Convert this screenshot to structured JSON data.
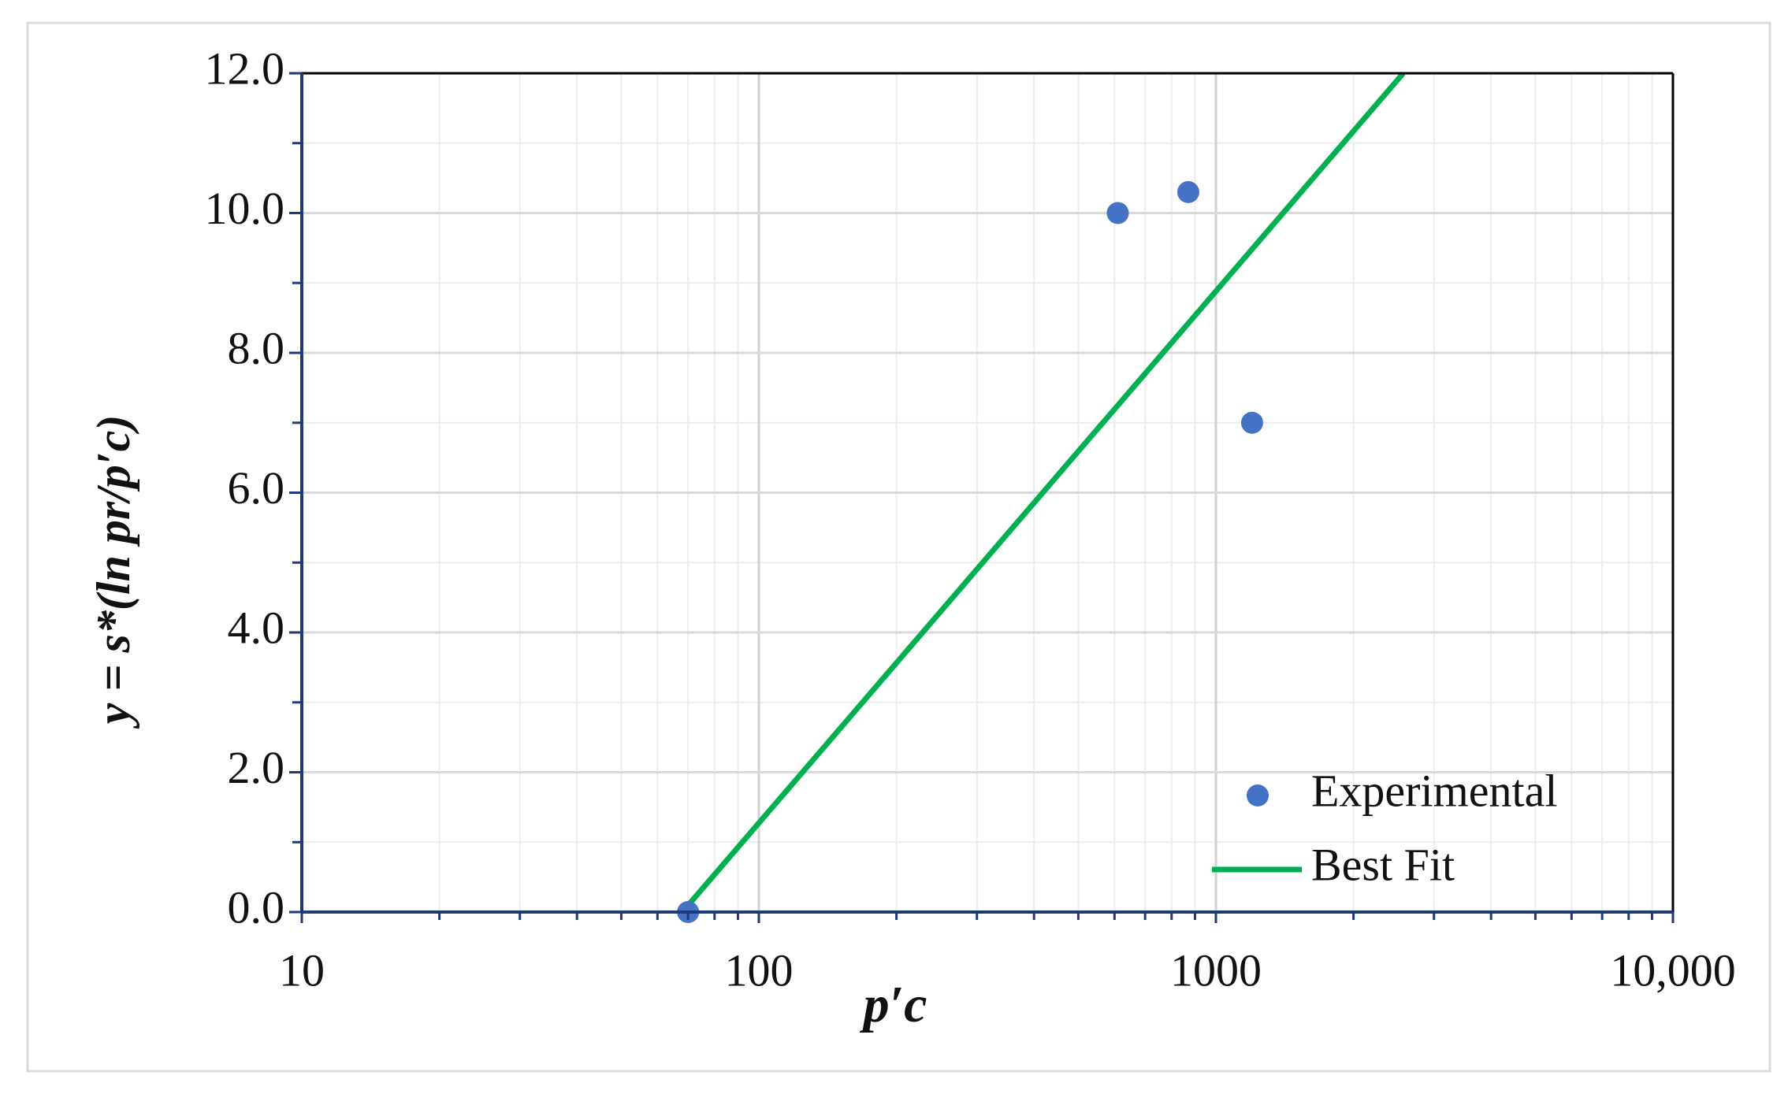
{
  "chart_data": {
    "type": "scatter",
    "x_label": "p′c",
    "y_label": "y = s*(ln pr/p′c)",
    "xscale": "log",
    "xlim": [
      10,
      10000
    ],
    "xticks": [
      10,
      100,
      1000,
      {
        "value": 10000,
        "label": "10,000"
      }
    ],
    "xminorticks": [
      20,
      30,
      40,
      50,
      60,
      70,
      80,
      90,
      200,
      300,
      400,
      500,
      600,
      700,
      800,
      900,
      2000,
      3000,
      4000,
      5000,
      6000,
      7000,
      8000,
      9000
    ],
    "ylim": [
      0,
      12
    ],
    "yticks": [
      {
        "value": 0,
        "label": "0.0"
      },
      {
        "value": 2,
        "label": "2.0"
      },
      {
        "value": 4,
        "label": "4.0"
      },
      {
        "value": 6,
        "label": "6.0"
      },
      {
        "value": 8,
        "label": "8.0"
      },
      {
        "value": 10,
        "label": "10.0"
      },
      {
        "value": 12,
        "label": "12.0"
      }
    ],
    "yminorticks": [
      1,
      3,
      5,
      7,
      9,
      11
    ],
    "grid": true,
    "legend": "lower right",
    "series": [
      {
        "name": "Experimental",
        "type": "scatter",
        "color": "#4472c4",
        "x": [
          70,
          610,
          870,
          1200
        ],
        "values": [
          0,
          10.0,
          10.3,
          7.0
        ]
      },
      {
        "name": "Best Fit",
        "type": "line",
        "color": "#00b050",
        "x": [
          68,
          2570
        ],
        "values": [
          0,
          12
        ]
      }
    ]
  }
}
